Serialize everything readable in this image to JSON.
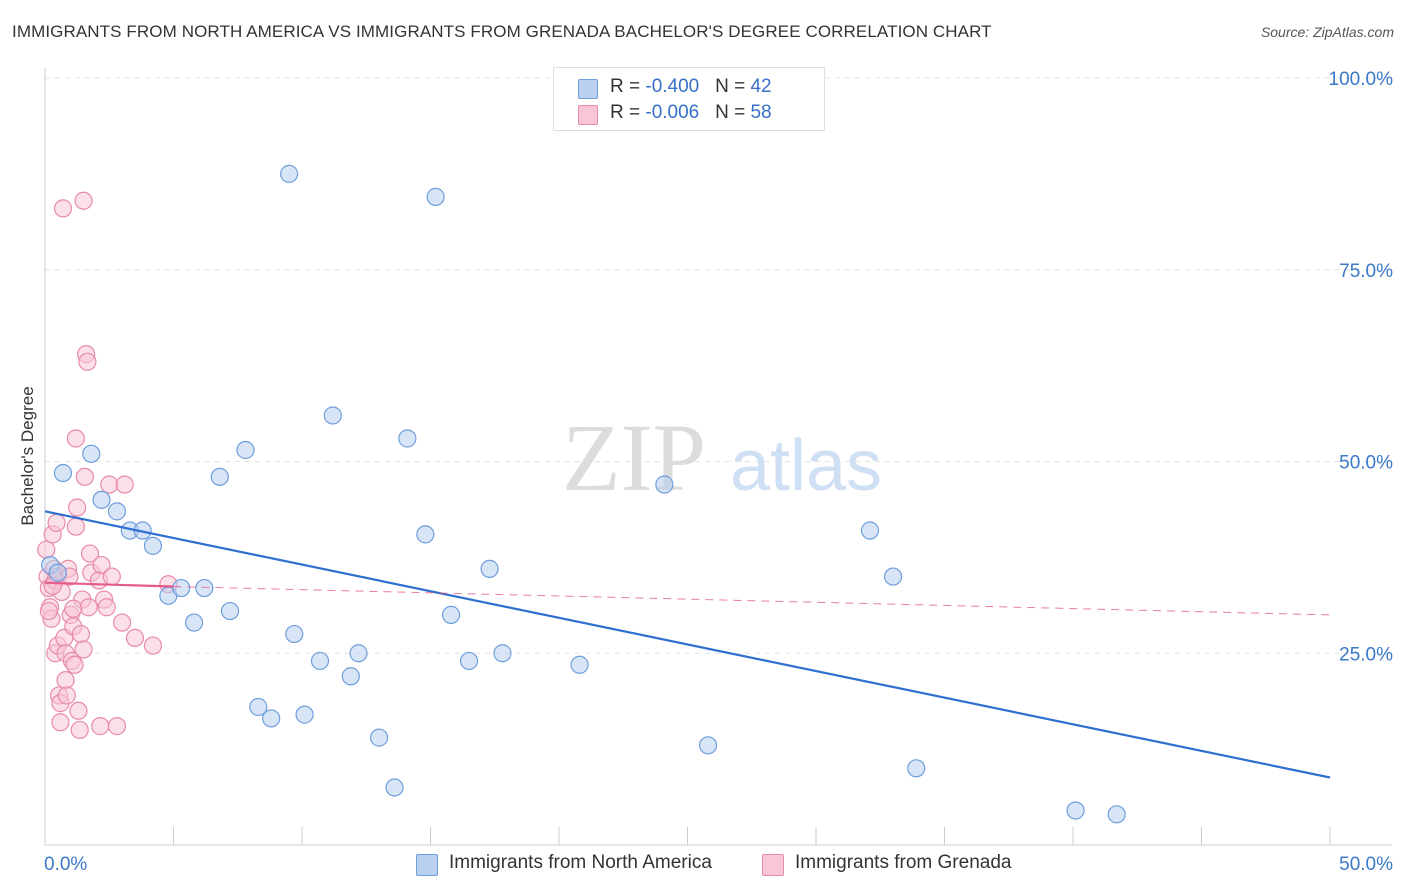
{
  "title": "IMMIGRANTS FROM NORTH AMERICA VS IMMIGRANTS FROM GRENADA BACHELOR'S DEGREE CORRELATION CHART",
  "source": "Source: ZipAtlas.com",
  "watermark": {
    "zip": "ZIP",
    "atlas": "atlas"
  },
  "legend": {
    "rows": [
      {
        "r_label": "R = ",
        "r_value": "-0.400",
        "n_label": "N = ",
        "n_value": "42"
      },
      {
        "r_label": "R = ",
        "r_value": "-0.006",
        "n_label": "N = ",
        "n_value": "58"
      }
    ]
  },
  "colors": {
    "series1_fill": "#b8d0f0",
    "series1_stroke": "#6e9edd",
    "series1_line": "#2f6fd0",
    "series2_fill": "#f8c6d6",
    "series2_stroke": "#e88aa8",
    "series2_line": "#e35c8a",
    "axis_text": "#3a78c8",
    "grid": "#e3e3e3"
  },
  "chart_data": {
    "type": "scatter",
    "title": "IMMIGRANTS FROM NORTH AMERICA VS IMMIGRANTS FROM GRENADA BACHELOR'S DEGREE CORRELATION CHART",
    "xlabel": "",
    "ylabel": "Bachelor's Degree",
    "xlim": [
      0,
      50
    ],
    "ylim": [
      0,
      100
    ],
    "x_tick_labels": [
      "0.0%",
      "50.0%"
    ],
    "y_ticks": [
      25,
      50,
      75,
      100
    ],
    "y_tick_labels": [
      "25.0%",
      "50.0%",
      "75.0%",
      "100.0%"
    ],
    "grid": true,
    "legend_position": "top-center",
    "series": [
      {
        "name": "Immigrants from North America",
        "r": -0.4,
        "n": 42,
        "trend": {
          "x": [
            0,
            50
          ],
          "y": [
            43.5,
            8.8
          ]
        },
        "points": [
          {
            "x": 0.2,
            "y": 36.5
          },
          {
            "x": 0.5,
            "y": 35.5
          },
          {
            "x": 0.7,
            "y": 48.5
          },
          {
            "x": 1.8,
            "y": 51
          },
          {
            "x": 2.2,
            "y": 45
          },
          {
            "x": 2.8,
            "y": 43.5
          },
          {
            "x": 3.3,
            "y": 41
          },
          {
            "x": 3.8,
            "y": 41
          },
          {
            "x": 4.2,
            "y": 39
          },
          {
            "x": 4.8,
            "y": 32.5
          },
          {
            "x": 5.3,
            "y": 33.5
          },
          {
            "x": 5.8,
            "y": 29
          },
          {
            "x": 6.2,
            "y": 33.5
          },
          {
            "x": 6.8,
            "y": 48
          },
          {
            "x": 7.2,
            "y": 30.5
          },
          {
            "x": 7.8,
            "y": 51.5
          },
          {
            "x": 8.3,
            "y": 18
          },
          {
            "x": 8.8,
            "y": 16.5
          },
          {
            "x": 9.5,
            "y": 87.5
          },
          {
            "x": 9.7,
            "y": 27.5
          },
          {
            "x": 10.1,
            "y": 17
          },
          {
            "x": 10.7,
            "y": 24
          },
          {
            "x": 11.2,
            "y": 56
          },
          {
            "x": 11.9,
            "y": 22
          },
          {
            "x": 12.2,
            "y": 25
          },
          {
            "x": 13,
            "y": 14
          },
          {
            "x": 13.6,
            "y": 7.5
          },
          {
            "x": 14.1,
            "y": 53
          },
          {
            "x": 14.8,
            "y": 40.5
          },
          {
            "x": 15.2,
            "y": 84.5
          },
          {
            "x": 15.8,
            "y": 30
          },
          {
            "x": 16.5,
            "y": 24
          },
          {
            "x": 17.3,
            "y": 36
          },
          {
            "x": 17.8,
            "y": 25
          },
          {
            "x": 20.8,
            "y": 23.5
          },
          {
            "x": 24.1,
            "y": 47
          },
          {
            "x": 25.8,
            "y": 13
          },
          {
            "x": 32.1,
            "y": 41
          },
          {
            "x": 33,
            "y": 35
          },
          {
            "x": 33.9,
            "y": 10
          },
          {
            "x": 40.1,
            "y": 4.5
          },
          {
            "x": 41.7,
            "y": 4
          }
        ]
      },
      {
        "name": "Immigrants from Grenada",
        "r": -0.006,
        "n": 58,
        "trend_solid": {
          "x": [
            0,
            5
          ],
          "y": [
            34.2,
            33.7
          ]
        },
        "trend_dashed": {
          "x": [
            5,
            50
          ],
          "y": [
            33.7,
            30
          ]
        },
        "points": [
          {
            "x": 0.05,
            "y": 38.5
          },
          {
            "x": 0.1,
            "y": 35
          },
          {
            "x": 0.15,
            "y": 33.5
          },
          {
            "x": 0.2,
            "y": 31
          },
          {
            "x": 0.25,
            "y": 29.5
          },
          {
            "x": 0.3,
            "y": 40.5
          },
          {
            "x": 0.35,
            "y": 36
          },
          {
            "x": 0.4,
            "y": 34.5
          },
          {
            "x": 0.4,
            "y": 25
          },
          {
            "x": 0.45,
            "y": 42
          },
          {
            "x": 0.5,
            "y": 35
          },
          {
            "x": 0.5,
            "y": 26
          },
          {
            "x": 0.55,
            "y": 19.5
          },
          {
            "x": 0.6,
            "y": 18.5
          },
          {
            "x": 0.6,
            "y": 16
          },
          {
            "x": 0.65,
            "y": 33
          },
          {
            "x": 0.7,
            "y": 83
          },
          {
            "x": 0.75,
            "y": 27
          },
          {
            "x": 0.8,
            "y": 25
          },
          {
            "x": 0.8,
            "y": 21.5
          },
          {
            "x": 0.85,
            "y": 19.5
          },
          {
            "x": 0.9,
            "y": 36
          },
          {
            "x": 0.95,
            "y": 35
          },
          {
            "x": 1,
            "y": 30
          },
          {
            "x": 1.05,
            "y": 24
          },
          {
            "x": 1.1,
            "y": 28.5
          },
          {
            "x": 1.15,
            "y": 23.5
          },
          {
            "x": 1.2,
            "y": 53
          },
          {
            "x": 1.2,
            "y": 41.5
          },
          {
            "x": 1.25,
            "y": 44
          },
          {
            "x": 1.3,
            "y": 17.5
          },
          {
            "x": 1.35,
            "y": 15
          },
          {
            "x": 1.4,
            "y": 27.5
          },
          {
            "x": 1.45,
            "y": 32
          },
          {
            "x": 1.5,
            "y": 84
          },
          {
            "x": 1.5,
            "y": 25.5
          },
          {
            "x": 1.55,
            "y": 48
          },
          {
            "x": 1.6,
            "y": 64
          },
          {
            "x": 1.65,
            "y": 63
          },
          {
            "x": 1.7,
            "y": 31
          },
          {
            "x": 1.75,
            "y": 38
          },
          {
            "x": 1.8,
            "y": 35.5
          },
          {
            "x": 2.1,
            "y": 34.5
          },
          {
            "x": 2.15,
            "y": 15.5
          },
          {
            "x": 2.2,
            "y": 36.5
          },
          {
            "x": 2.3,
            "y": 32
          },
          {
            "x": 2.4,
            "y": 31
          },
          {
            "x": 2.5,
            "y": 47
          },
          {
            "x": 2.6,
            "y": 35
          },
          {
            "x": 2.8,
            "y": 15.5
          },
          {
            "x": 3,
            "y": 29
          },
          {
            "x": 3.1,
            "y": 47
          },
          {
            "x": 3.5,
            "y": 27
          },
          {
            "x": 4.2,
            "y": 26
          },
          {
            "x": 4.8,
            "y": 34
          },
          {
            "x": 0.15,
            "y": 30.5
          },
          {
            "x": 0.3,
            "y": 33.8
          },
          {
            "x": 1.1,
            "y": 30.8
          }
        ]
      }
    ]
  },
  "bottom_legend": [
    {
      "label": "Immigrants from North America"
    },
    {
      "label": "Immigrants from Grenada"
    }
  ]
}
